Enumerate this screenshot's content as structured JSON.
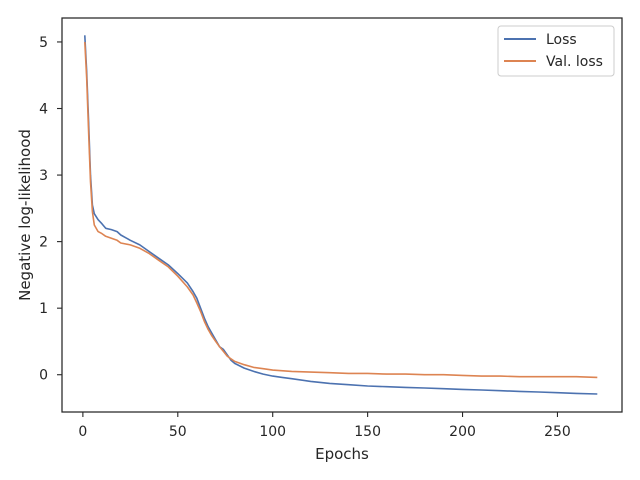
{
  "chart_data": {
    "type": "line",
    "title": "",
    "xlabel": "Epochs",
    "ylabel": "Negative log-likelihood",
    "xlim": [
      -11,
      284
    ],
    "ylim": [
      -0.56,
      5.36
    ],
    "xticks": [
      0,
      50,
      100,
      150,
      200,
      250
    ],
    "yticks": [
      0,
      1,
      2,
      3,
      4,
      5
    ],
    "grid": false,
    "legend_position": "top-right",
    "colors": {
      "Loss": "#4c72b0",
      "Val. loss": "#dd8452"
    },
    "series": [
      {
        "name": "Loss",
        "color": "#4c72b0",
        "points": [
          [
            1,
            5.1
          ],
          [
            2,
            4.55
          ],
          [
            3,
            3.8
          ],
          [
            4,
            3.0
          ],
          [
            5,
            2.55
          ],
          [
            6,
            2.42
          ],
          [
            8,
            2.33
          ],
          [
            10,
            2.27
          ],
          [
            12,
            2.2
          ],
          [
            15,
            2.18
          ],
          [
            18,
            2.15
          ],
          [
            20,
            2.1
          ],
          [
            25,
            2.02
          ],
          [
            30,
            1.95
          ],
          [
            35,
            1.85
          ],
          [
            40,
            1.75
          ],
          [
            45,
            1.65
          ],
          [
            50,
            1.52
          ],
          [
            55,
            1.38
          ],
          [
            58,
            1.25
          ],
          [
            60,
            1.15
          ],
          [
            62,
            1.0
          ],
          [
            64,
            0.85
          ],
          [
            66,
            0.72
          ],
          [
            68,
            0.62
          ],
          [
            70,
            0.52
          ],
          [
            72,
            0.42
          ],
          [
            74,
            0.38
          ],
          [
            76,
            0.3
          ],
          [
            78,
            0.22
          ],
          [
            80,
            0.17
          ],
          [
            85,
            0.1
          ],
          [
            90,
            0.05
          ],
          [
            95,
            0.01
          ],
          [
            100,
            -0.02
          ],
          [
            105,
            -0.04
          ],
          [
            110,
            -0.06
          ],
          [
            120,
            -0.1
          ],
          [
            130,
            -0.13
          ],
          [
            140,
            -0.15
          ],
          [
            150,
            -0.17
          ],
          [
            160,
            -0.18
          ],
          [
            170,
            -0.19
          ],
          [
            180,
            -0.2
          ],
          [
            190,
            -0.21
          ],
          [
            200,
            -0.22
          ],
          [
            210,
            -0.23
          ],
          [
            220,
            -0.24
          ],
          [
            230,
            -0.25
          ],
          [
            240,
            -0.26
          ],
          [
            250,
            -0.27
          ],
          [
            260,
            -0.28
          ],
          [
            271,
            -0.29
          ]
        ]
      },
      {
        "name": "Val. loss",
        "color": "#dd8452",
        "points": [
          [
            1,
            5.0
          ],
          [
            2,
            4.45
          ],
          [
            3,
            3.65
          ],
          [
            4,
            2.9
          ],
          [
            5,
            2.45
          ],
          [
            6,
            2.25
          ],
          [
            8,
            2.15
          ],
          [
            10,
            2.12
          ],
          [
            12,
            2.08
          ],
          [
            15,
            2.05
          ],
          [
            18,
            2.02
          ],
          [
            20,
            1.98
          ],
          [
            25,
            1.95
          ],
          [
            30,
            1.9
          ],
          [
            35,
            1.82
          ],
          [
            40,
            1.72
          ],
          [
            45,
            1.62
          ],
          [
            50,
            1.48
          ],
          [
            55,
            1.32
          ],
          [
            58,
            1.2
          ],
          [
            60,
            1.08
          ],
          [
            62,
            0.95
          ],
          [
            64,
            0.8
          ],
          [
            66,
            0.68
          ],
          [
            68,
            0.58
          ],
          [
            70,
            0.5
          ],
          [
            72,
            0.42
          ],
          [
            74,
            0.35
          ],
          [
            76,
            0.28
          ],
          [
            78,
            0.24
          ],
          [
            80,
            0.2
          ],
          [
            85,
            0.15
          ],
          [
            90,
            0.11
          ],
          [
            95,
            0.09
          ],
          [
            100,
            0.07
          ],
          [
            110,
            0.05
          ],
          [
            120,
            0.04
          ],
          [
            130,
            0.03
          ],
          [
            140,
            0.02
          ],
          [
            150,
            0.02
          ],
          [
            160,
            0.01
          ],
          [
            170,
            0.01
          ],
          [
            180,
            0.0
          ],
          [
            190,
            0.0
          ],
          [
            200,
            -0.01
          ],
          [
            210,
            -0.02
          ],
          [
            220,
            -0.02
          ],
          [
            230,
            -0.03
          ],
          [
            240,
            -0.03
          ],
          [
            250,
            -0.03
          ],
          [
            260,
            -0.03
          ],
          [
            271,
            -0.04
          ]
        ]
      }
    ]
  }
}
